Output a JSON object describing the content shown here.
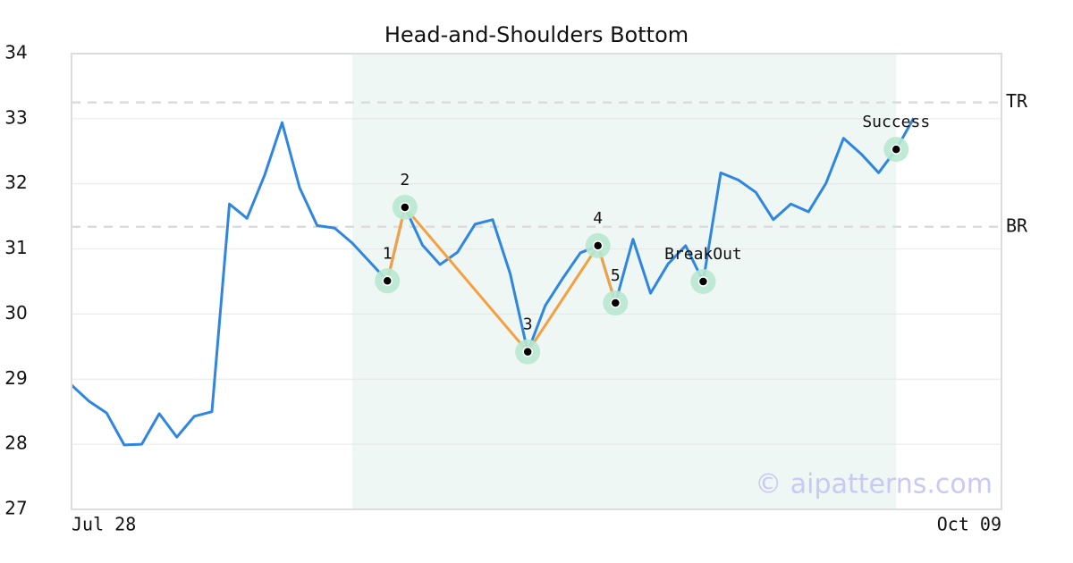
{
  "chart_data": {
    "type": "line",
    "title": "Head-and-Shoulders Bottom",
    "x": [
      0,
      1,
      2,
      3,
      4,
      5,
      6,
      7,
      8,
      9,
      10,
      11,
      12,
      13,
      14,
      15,
      16,
      17,
      18,
      19,
      20,
      21,
      22,
      23,
      24,
      25,
      26,
      27,
      28,
      29,
      30,
      31,
      32,
      33,
      34,
      35,
      36,
      37,
      38,
      39,
      40,
      41,
      42,
      43,
      44,
      45,
      46,
      47,
      48
    ],
    "xlim": [
      0,
      53
    ],
    "xticks": [
      {
        "value": 0,
        "label": "Jul 28"
      },
      {
        "value": 53,
        "label": "Oct 09"
      }
    ],
    "ylim": [
      27,
      34
    ],
    "yticks": [
      27,
      28,
      29,
      30,
      31,
      32,
      33,
      34
    ],
    "grid": true,
    "series": [
      {
        "color": "#2f86e0",
        "values": [
          28.91,
          28.66,
          28.48,
          27.99,
          28.0,
          28.47,
          28.11,
          28.43,
          28.5,
          31.69,
          31.47,
          32.13,
          32.94,
          31.94,
          31.36,
          31.32,
          31.09,
          30.8,
          30.51,
          31.64,
          31.06,
          30.76,
          30.95,
          31.38,
          31.45,
          30.62,
          29.42,
          30.13,
          30.55,
          30.94,
          31.05,
          30.17,
          31.15,
          30.32,
          30.77,
          31.05,
          30.5,
          32.17,
          32.06,
          31.87,
          31.45,
          31.69,
          31.57,
          32.01,
          32.7,
          32.46,
          32.17,
          32.53,
          33.01
        ]
      }
    ],
    "highlight_range": [
      16,
      47
    ],
    "highlight_color": "#eef7f3",
    "levels": [
      {
        "label": "TR",
        "value": 33.25
      },
      {
        "label": "BR",
        "value": 31.34
      }
    ],
    "pattern_color": "#f5a040",
    "pattern_points": [
      {
        "label": "1",
        "x": 18,
        "value": 30.51
      },
      {
        "label": "2",
        "x": 19,
        "value": 31.64
      },
      {
        "label": "3",
        "x": 26,
        "value": 29.42
      },
      {
        "label": "4",
        "x": 30,
        "value": 31.05
      },
      {
        "label": "5",
        "x": 31,
        "value": 30.17
      }
    ],
    "event_points": [
      {
        "label": "BreakOut",
        "x": 36,
        "value": 30.5
      },
      {
        "label": "Success",
        "x": 47,
        "value": 32.53
      }
    ],
    "watermark": "© aipatterns.com"
  }
}
